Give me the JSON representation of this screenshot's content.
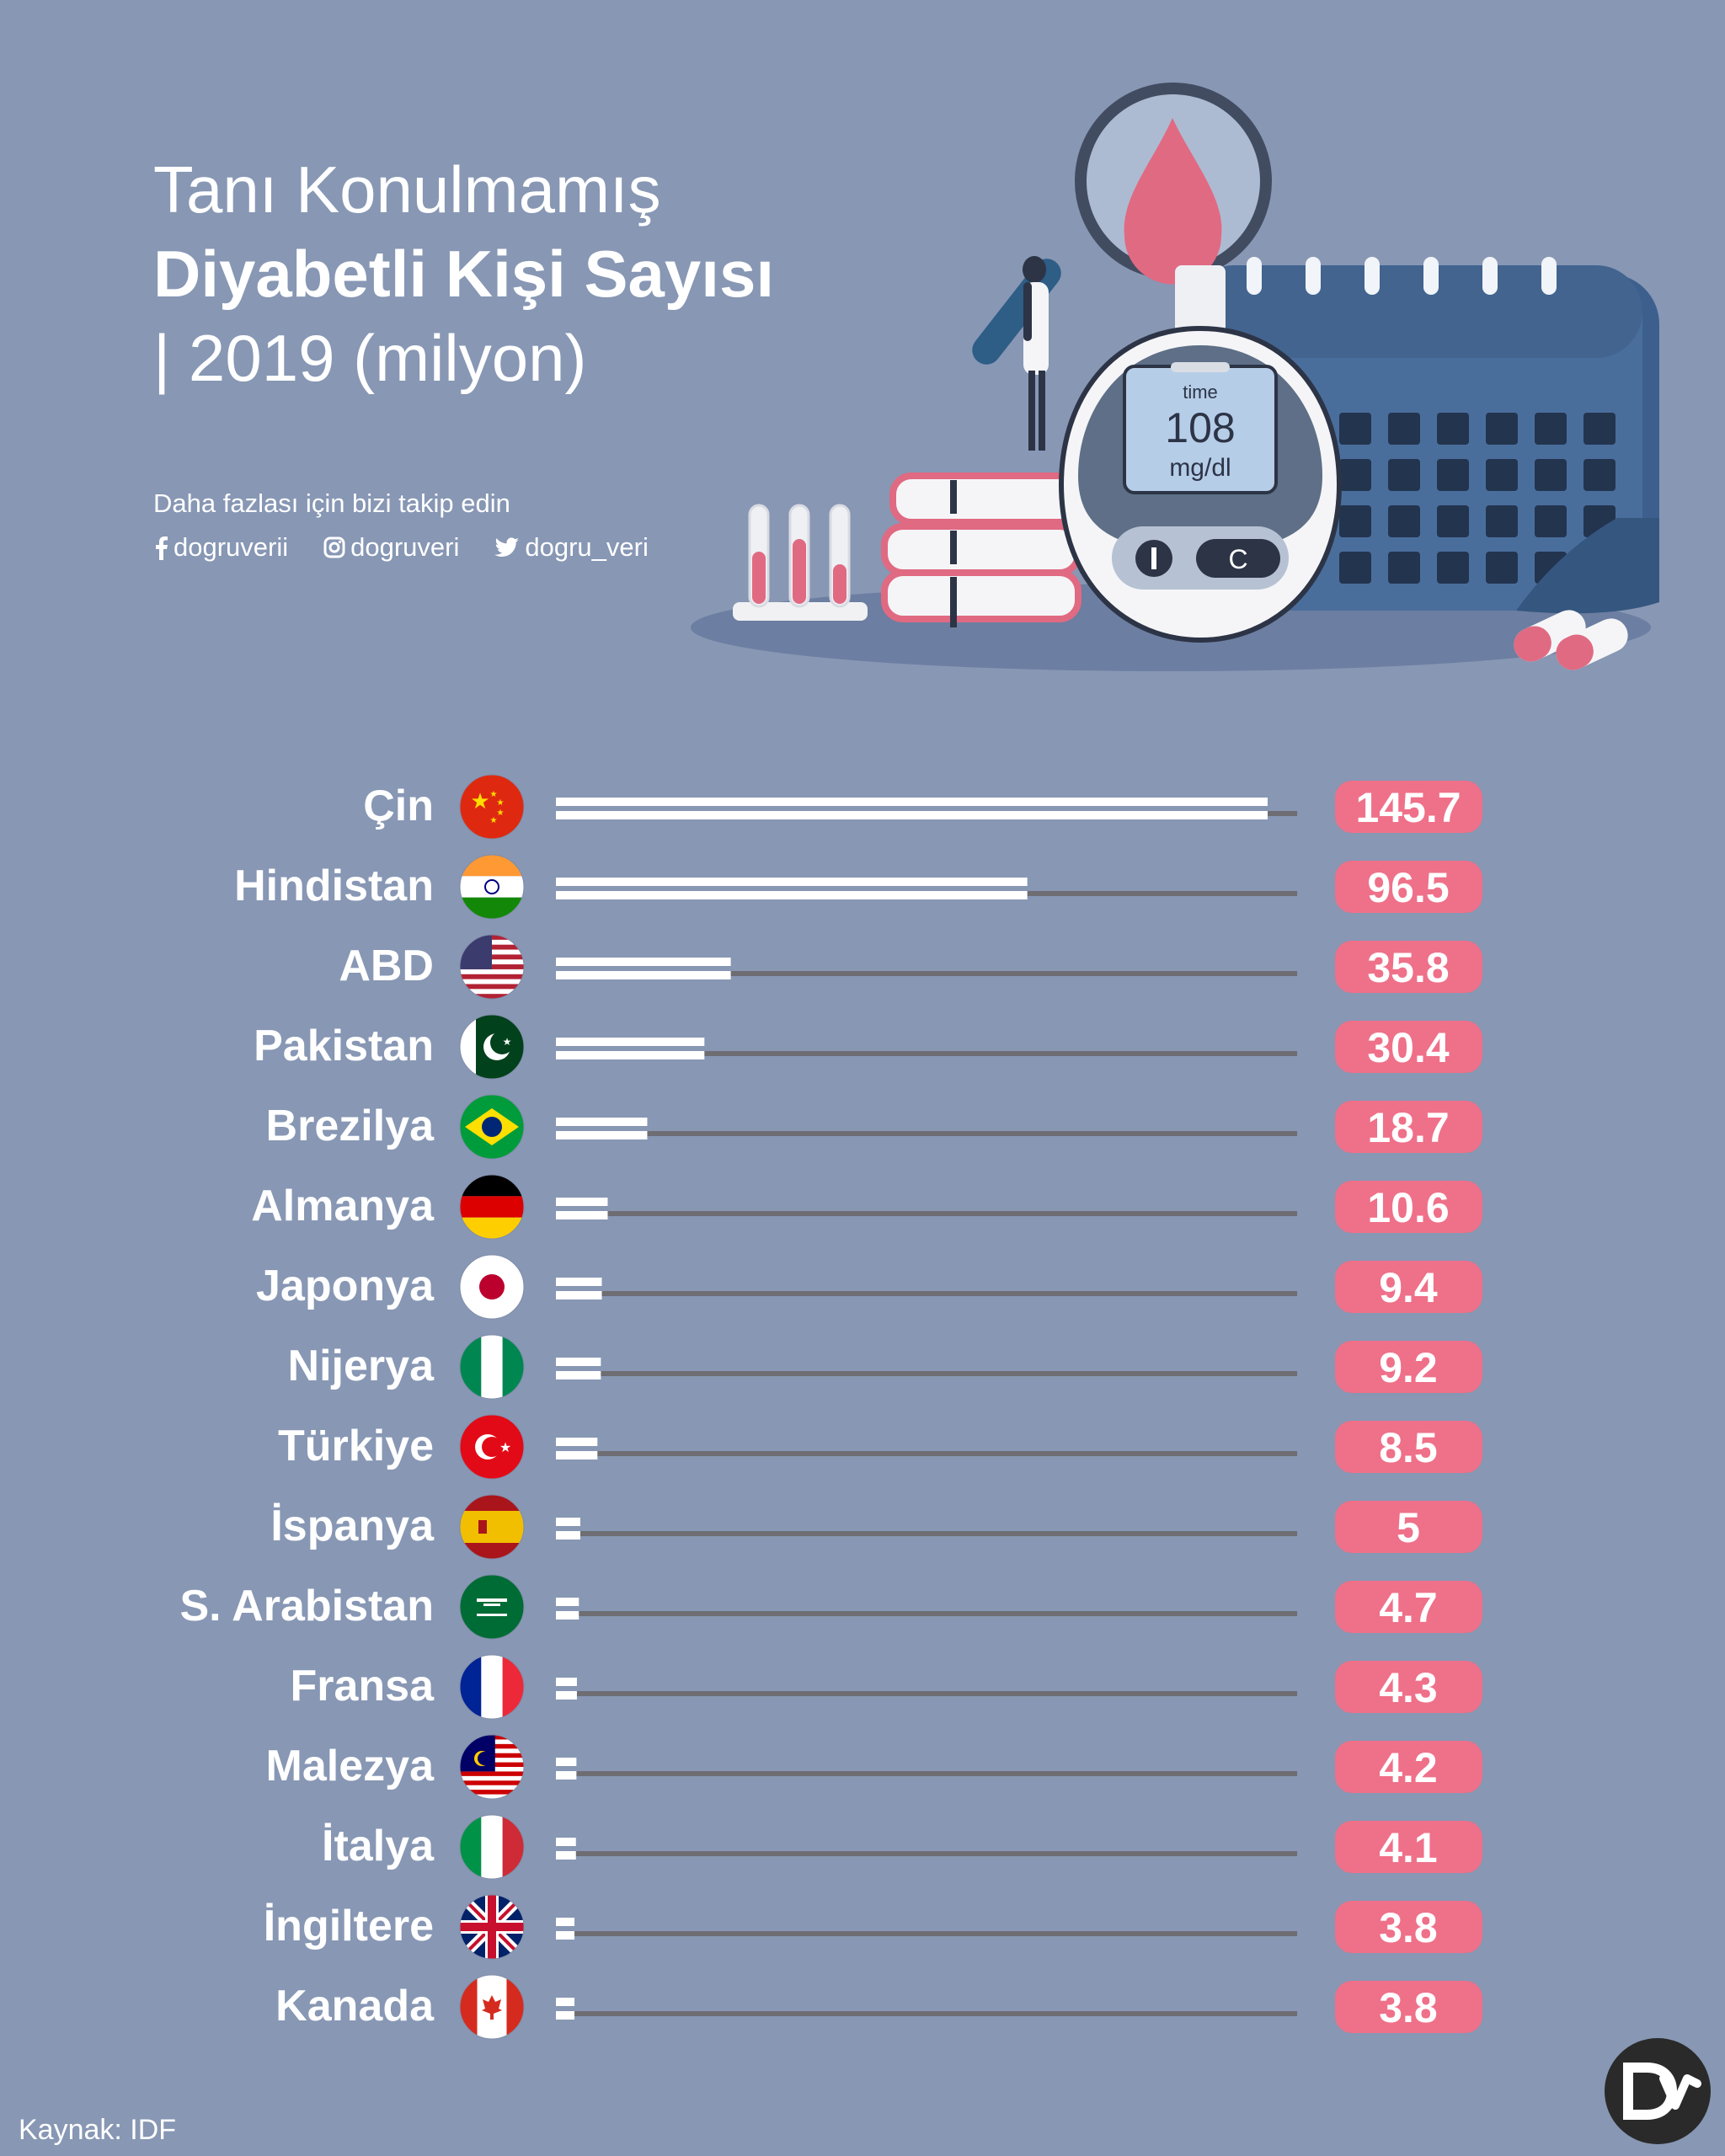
{
  "title": {
    "line1": "Tanı Konulmamış",
    "line2": "Diyabetli Kişi Sayısı",
    "line3": "| 2019 (milyon)"
  },
  "follow_text": "Daha fazlası için bizi takip edin",
  "socials": [
    {
      "icon": "facebook-icon",
      "handle": "dogruverii"
    },
    {
      "icon": "instagram-icon",
      "handle": "dogruveri"
    },
    {
      "icon": "twitter-icon",
      "handle": "dogru_veri"
    }
  ],
  "illustration": {
    "meter_label_top": "time",
    "meter_value": "108",
    "meter_unit": "mg/dl",
    "meter_button": "C"
  },
  "source": "Kaynak: IDF",
  "logo_text": "DV",
  "colors": {
    "background": "#8797b4",
    "bar": "#ffffff",
    "track": "#6d6d73",
    "value_pill": "#ef7089",
    "label": "#ffffff"
  },
  "chart_data": {
    "type": "bar",
    "orientation": "horizontal",
    "title": "Tanı Konulmamış Diyabetli Kişi Sayısı | 2019 (milyon)",
    "xlim": [
      0,
      145.7
    ],
    "grid": false,
    "categories": [
      "Çin",
      "Hindistan",
      "ABD",
      "Pakistan",
      "Brezilya",
      "Almanya",
      "Japonya",
      "Nijerya",
      "Türkiye",
      "İspanya",
      "S. Arabistan",
      "Fransa",
      "Malezya",
      "İtalya",
      "İngiltere",
      "Kanada"
    ],
    "flags": [
      "china-flag-icon",
      "india-flag-icon",
      "usa-flag-icon",
      "pakistan-flag-icon",
      "brazil-flag-icon",
      "germany-flag-icon",
      "japan-flag-icon",
      "nigeria-flag-icon",
      "turkey-flag-icon",
      "spain-flag-icon",
      "saudi-arabia-flag-icon",
      "france-flag-icon",
      "malaysia-flag-icon",
      "italy-flag-icon",
      "uk-flag-icon",
      "canada-flag-icon"
    ],
    "values": [
      145.7,
      96.5,
      35.8,
      30.4,
      18.7,
      10.6,
      9.4,
      9.2,
      8.5,
      5,
      4.7,
      4.3,
      4.2,
      4.1,
      3.8,
      3.8
    ],
    "value_labels": [
      "145.7",
      "96.5",
      "35.8",
      "30.4",
      "18.7",
      "10.6",
      "9.4",
      "9.2",
      "8.5",
      "5",
      "4.7",
      "4.3",
      "4.2",
      "4.1",
      "3.8",
      "3.8"
    ]
  }
}
